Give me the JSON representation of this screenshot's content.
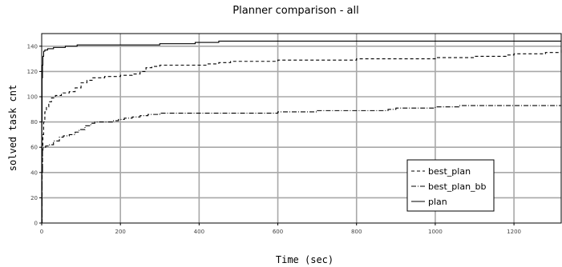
{
  "chart_data": {
    "type": "line",
    "title": "Planner comparison - all",
    "xlabel": "Time (sec)",
    "ylabel": "solved task cnt",
    "xlim": [
      0,
      1320
    ],
    "ylim": [
      0,
      150
    ],
    "xticks": [
      0,
      200,
      400,
      600,
      800,
      1000,
      1200
    ],
    "yticks": [
      0,
      20,
      40,
      60,
      80,
      100,
      120,
      140
    ],
    "grid": true,
    "legend_position": "lower-right",
    "series": [
      {
        "name": "best_plan",
        "style": "dashed",
        "color": "#000000",
        "points": [
          [
            0,
            0
          ],
          [
            1,
            40
          ],
          [
            2,
            60
          ],
          [
            3,
            70
          ],
          [
            5,
            80
          ],
          [
            8,
            88
          ],
          [
            12,
            92
          ],
          [
            18,
            96
          ],
          [
            25,
            99
          ],
          [
            35,
            101
          ],
          [
            50,
            103
          ],
          [
            70,
            104
          ],
          [
            85,
            107
          ],
          [
            100,
            111
          ],
          [
            115,
            113
          ],
          [
            130,
            115
          ],
          [
            160,
            116
          ],
          [
            200,
            117
          ],
          [
            230,
            118
          ],
          [
            250,
            120
          ],
          [
            265,
            123
          ],
          [
            280,
            124
          ],
          [
            300,
            125
          ],
          [
            380,
            125
          ],
          [
            420,
            126
          ],
          [
            450,
            127
          ],
          [
            480,
            128
          ],
          [
            550,
            128
          ],
          [
            600,
            129
          ],
          [
            700,
            129
          ],
          [
            800,
            130
          ],
          [
            900,
            130
          ],
          [
            1000,
            131
          ],
          [
            1100,
            132
          ],
          [
            1160,
            132
          ],
          [
            1180,
            133
          ],
          [
            1200,
            134
          ],
          [
            1280,
            135
          ],
          [
            1320,
            137
          ]
        ]
      },
      {
        "name": "best_plan_bb",
        "style": "dashdot",
        "color": "#000000",
        "points": [
          [
            0,
            0
          ],
          [
            1,
            40
          ],
          [
            2,
            58
          ],
          [
            5,
            60
          ],
          [
            10,
            61
          ],
          [
            20,
            62
          ],
          [
            30,
            65
          ],
          [
            45,
            68
          ],
          [
            55,
            69
          ],
          [
            70,
            70
          ],
          [
            85,
            72
          ],
          [
            95,
            74
          ],
          [
            110,
            77
          ],
          [
            125,
            79
          ],
          [
            135,
            80
          ],
          [
            180,
            81
          ],
          [
            195,
            82
          ],
          [
            210,
            83
          ],
          [
            230,
            84
          ],
          [
            250,
            85
          ],
          [
            270,
            86
          ],
          [
            300,
            87
          ],
          [
            400,
            87
          ],
          [
            500,
            87
          ],
          [
            600,
            88
          ],
          [
            700,
            89
          ],
          [
            800,
            89
          ],
          [
            880,
            90
          ],
          [
            900,
            91
          ],
          [
            1000,
            92
          ],
          [
            1060,
            93
          ],
          [
            1320,
            93
          ]
        ]
      },
      {
        "name": "plan",
        "style": "solid",
        "color": "#000000",
        "points": [
          [
            0,
            0
          ],
          [
            0.5,
            80
          ],
          [
            1,
            115
          ],
          [
            2,
            125
          ],
          [
            3,
            132
          ],
          [
            5,
            136
          ],
          [
            8,
            137
          ],
          [
            15,
            138
          ],
          [
            30,
            139
          ],
          [
            55,
            139
          ],
          [
            60,
            140
          ],
          [
            90,
            141
          ],
          [
            200,
            141
          ],
          [
            300,
            142
          ],
          [
            380,
            142
          ],
          [
            390,
            143
          ],
          [
            400,
            143
          ],
          [
            430,
            143
          ],
          [
            450,
            144
          ],
          [
            1320,
            144
          ]
        ]
      }
    ]
  }
}
